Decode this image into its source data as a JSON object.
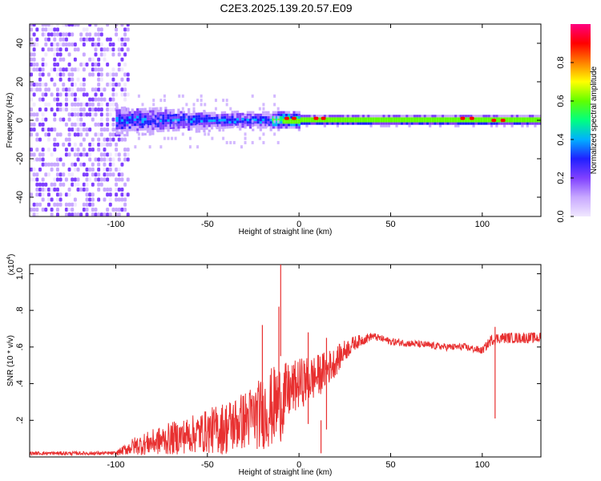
{
  "title": "C2E3.2025.139.20.57.E09",
  "chart_data": [
    {
      "type": "heatmap",
      "name": "spectrogram",
      "xlabel": "Height of straight line (km)",
      "ylabel": "Frequency (Hz)",
      "xlim": [
        -147,
        132
      ],
      "ylim": [
        -50,
        50
      ],
      "x_ticks": [
        -100,
        -50,
        0,
        50,
        100
      ],
      "y_ticks": [
        -40,
        -20,
        0,
        20,
        40
      ],
      "colorbar": {
        "label": "Normalized spectral amplitude",
        "range": [
          0,
          1
        ],
        "ticks": [
          0.0,
          0.2,
          0.4,
          0.6,
          0.8
        ],
        "colors": [
          "#f0e8ff",
          "#c8a8ff",
          "#8040ff",
          "#2020ff",
          "#00b0ff",
          "#00ff80",
          "#60ff00",
          "#ffff00",
          "#ff8000",
          "#ff0000",
          "#ff0080"
        ]
      },
      "grid": false
    },
    {
      "type": "line",
      "name": "snr",
      "xlabel": "Height of straight line (km)",
      "ylabel": "SNR (10 * v/v)",
      "y_multiplier": "(x10^4)",
      "xlim": [
        -147,
        132
      ],
      "ylim": [
        0,
        1.05
      ],
      "x_ticks": [
        -100,
        -50,
        0,
        50,
        100
      ],
      "y_ticks": [
        0.2,
        0.4,
        0.6,
        0.8,
        1.0
      ],
      "color": "#e83030",
      "grid": false,
      "envelope": {
        "x": [
          -147,
          -100,
          -95,
          -90,
          -80,
          -70,
          -60,
          -50,
          -40,
          -30,
          -20,
          -15,
          -10,
          -5,
          0,
          5,
          10,
          15,
          20,
          25,
          30,
          35,
          40,
          50,
          60,
          70,
          80,
          90,
          100,
          105,
          110,
          120,
          132
        ],
        "mean": [
          0.02,
          0.02,
          0.04,
          0.06,
          0.08,
          0.1,
          0.12,
          0.14,
          0.16,
          0.2,
          0.24,
          0.27,
          0.3,
          0.36,
          0.4,
          0.42,
          0.44,
          0.48,
          0.52,
          0.58,
          0.62,
          0.64,
          0.66,
          0.63,
          0.62,
          0.61,
          0.6,
          0.6,
          0.58,
          0.64,
          0.65,
          0.65,
          0.65
        ],
        "amp": [
          0.01,
          0.01,
          0.03,
          0.05,
          0.07,
          0.09,
          0.1,
          0.12,
          0.15,
          0.16,
          0.2,
          0.22,
          0.22,
          0.15,
          0.14,
          0.13,
          0.12,
          0.1,
          0.08,
          0.06,
          0.04,
          0.03,
          0.02,
          0.02,
          0.02,
          0.02,
          0.02,
          0.02,
          0.02,
          0.03,
          0.03,
          0.03,
          0.03
        ]
      },
      "spikes": [
        {
          "x": -10,
          "y": 1.05
        },
        {
          "x": -11,
          "y": 0.82
        },
        {
          "x": -20,
          "y": 0.72
        },
        {
          "x": 5,
          "y": 0.68
        },
        {
          "x": 15,
          "y": 0.65
        },
        {
          "x": -100,
          "y": 0.02
        },
        {
          "x": 12,
          "y": 0.2
        },
        {
          "x": 107,
          "y": 0.71
        }
      ]
    }
  ]
}
